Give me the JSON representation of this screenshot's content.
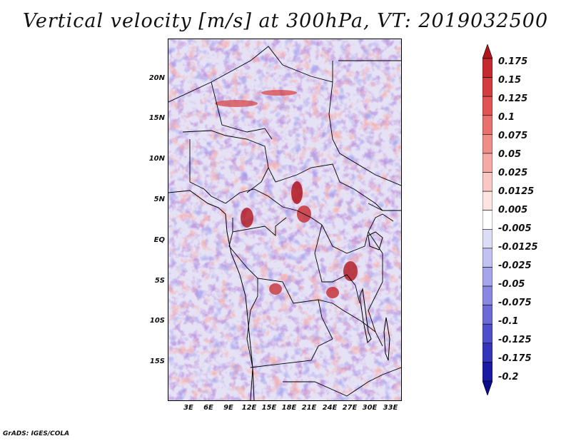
{
  "title": "Vertical velocity [m/s] at 300hPa, VT: 2019032500",
  "footer": "GrADS: IGES/COLA",
  "map": {
    "lat_labels": [
      "20N",
      "15N",
      "10N",
      "5N",
      "EQ",
      "5S",
      "10S",
      "15S"
    ],
    "lon_labels": [
      "3E",
      "6E",
      "9E",
      "12E",
      "15E",
      "18E",
      "21E",
      "24E",
      "27E",
      "30E",
      "33E"
    ]
  },
  "colorbar": {
    "labels": [
      "0.175",
      "0.15",
      "0.125",
      "0.1",
      "0.075",
      "0.05",
      "0.025",
      "0.0125",
      "0.005",
      "-0.005",
      "-0.0125",
      "-0.025",
      "-0.05",
      "-0.075",
      "-0.1",
      "-0.125",
      "-0.175",
      "-0.2"
    ],
    "colors": [
      "#b0141c",
      "#c42a2e",
      "#d43d3f",
      "#e05454",
      "#e8716d",
      "#ef8d88",
      "#f5aaa5",
      "#f9c8c4",
      "#fde4e1",
      "#ffffff",
      "#dcdcf7",
      "#c2c2f2",
      "#a5a5ec",
      "#8888e3",
      "#6b6bd8",
      "#4f4fcb",
      "#3535bb",
      "#1a1aa5",
      "#0b0b8c"
    ]
  }
}
